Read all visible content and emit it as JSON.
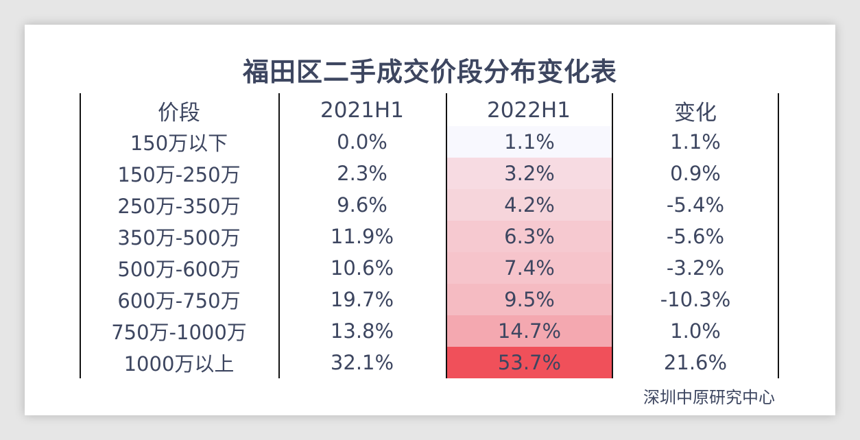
{
  "title": "福田区二手成交价段分布变化表",
  "source": "深圳中原研究中心",
  "chart_data": {
    "type": "table",
    "title": "福田区二手成交价段分布变化表",
    "columns": [
      "价段",
      "2021H1",
      "2022H1",
      "变化"
    ],
    "rows": [
      [
        "150万以下",
        "0.0%",
        "1.1%",
        "1.1%"
      ],
      [
        "150万-250万",
        "2.3%",
        "3.2%",
        "0.9%"
      ],
      [
        "250万-350万",
        "9.6%",
        "4.2%",
        "-5.4%"
      ],
      [
        "350万-500万",
        "11.9%",
        "6.3%",
        "-5.6%"
      ],
      [
        "500万-600万",
        "10.6%",
        "7.4%",
        "-3.2%"
      ],
      [
        "600万-750万",
        "19.7%",
        "9.5%",
        "-10.3%"
      ],
      [
        "750万-1000万",
        "13.8%",
        "14.7%",
        "1.0%"
      ],
      [
        "1000万以上",
        "32.1%",
        "53.7%",
        "21.6%"
      ]
    ],
    "heat_column": "2022H1",
    "heat_values": [
      1.1,
      3.2,
      4.2,
      6.3,
      7.4,
      9.5,
      14.7,
      53.7
    ],
    "heat_colors": {
      "low": "#f8f8fe",
      "high": "#f0505a"
    }
  }
}
